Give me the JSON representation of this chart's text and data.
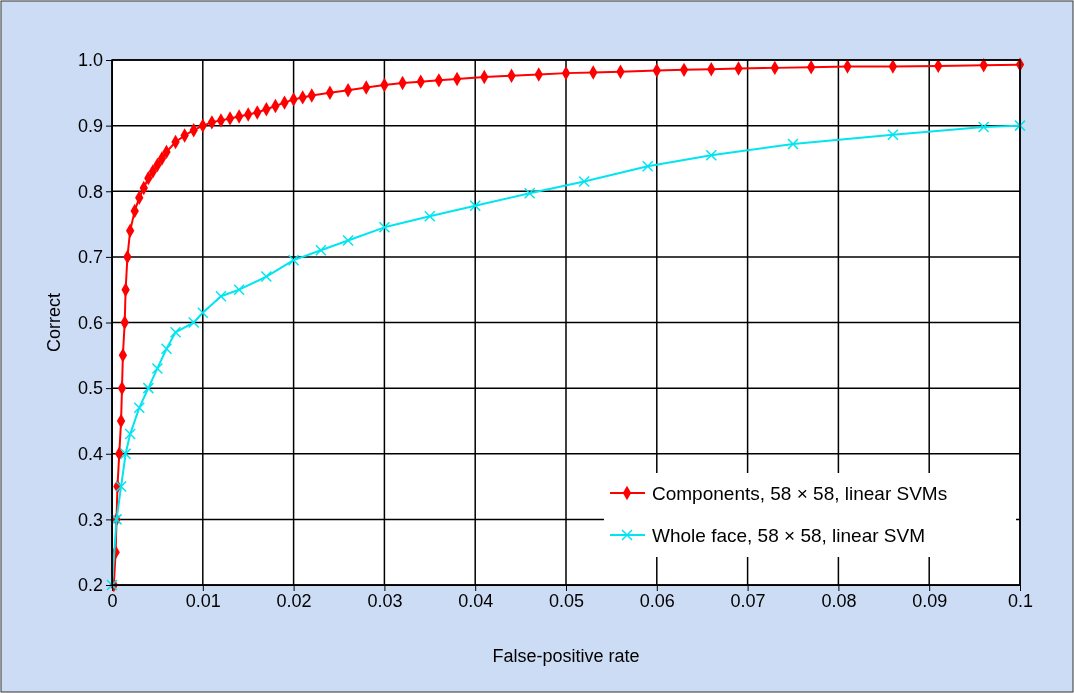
{
  "chart_data": {
    "type": "line",
    "xlabel": "False-positive rate",
    "ylabel": "Correct",
    "xlim": [
      0,
      0.1
    ],
    "ylim": [
      0.2,
      1.0
    ],
    "xticks": [
      0,
      0.01,
      0.02,
      0.03,
      0.04,
      0.05,
      0.06,
      0.07,
      0.08,
      0.09,
      0.1
    ],
    "yticks": [
      0.2,
      0.3,
      0.4,
      0.5,
      0.6,
      0.7,
      0.8,
      0.9,
      {
        "value": 1,
        "label": "1.0"
      }
    ],
    "grid": true,
    "legend": "bottom right",
    "line_style": "solid",
    "series": [
      {
        "name": "Components, 58 × 58, linear SVMs",
        "color": "#ff0000",
        "marker": "diamond",
        "x": [
          0.0002,
          0.0004,
          0.0005,
          0.0006,
          0.0008,
          0.001,
          0.0011,
          0.0012,
          0.0014,
          0.0015,
          0.0017,
          0.002,
          0.0025,
          0.003,
          0.0035,
          0.004,
          0.0045,
          0.005,
          0.0055,
          0.006,
          0.007,
          0.008,
          0.009,
          0.01,
          0.011,
          0.012,
          0.013,
          0.014,
          0.015,
          0.016,
          0.017,
          0.018,
          0.019,
          0.02,
          0.021,
          0.022,
          0.024,
          0.026,
          0.028,
          0.03,
          0.032,
          0.034,
          0.036,
          0.038,
          0.041,
          0.044,
          0.047,
          0.05,
          0.053,
          0.056,
          0.06,
          0.063,
          0.066,
          0.069,
          0.073,
          0.077,
          0.081,
          0.086,
          0.091,
          0.096,
          0.1
        ],
        "values": [
          0.2,
          0.25,
          0.3,
          0.35,
          0.4,
          0.45,
          0.5,
          0.55,
          0.6,
          0.65,
          0.7,
          0.74,
          0.77,
          0.79,
          0.805,
          0.82,
          0.83,
          0.84,
          0.85,
          0.86,
          0.875,
          0.885,
          0.893,
          0.9,
          0.905,
          0.908,
          0.911,
          0.914,
          0.917,
          0.92,
          0.925,
          0.93,
          0.935,
          0.94,
          0.943,
          0.946,
          0.95,
          0.954,
          0.958,
          0.962,
          0.965,
          0.967,
          0.969,
          0.971,
          0.974,
          0.976,
          0.978,
          0.98,
          0.981,
          0.982,
          0.984,
          0.985,
          0.986,
          0.987,
          0.988,
          0.989,
          0.99,
          0.99,
          0.991,
          0.992,
          0.993
        ]
      },
      {
        "name": "Whole face, 58 × 58, linear SVM",
        "color": "#00e5f0",
        "marker": "cross",
        "x": [
          0,
          0.0005,
          0.001,
          0.0015,
          0.002,
          0.003,
          0.004,
          0.005,
          0.006,
          0.007,
          0.009,
          0.01,
          0.012,
          0.014,
          0.017,
          0.02,
          0.023,
          0.026,
          0.03,
          0.035,
          0.04,
          0.046,
          0.052,
          0.059,
          0.066,
          0.075,
          0.086,
          0.096,
          0.1
        ],
        "values": [
          0.2,
          0.3,
          0.35,
          0.4,
          0.43,
          0.47,
          0.5,
          0.53,
          0.56,
          0.585,
          0.6,
          0.615,
          0.64,
          0.65,
          0.67,
          0.695,
          0.71,
          0.725,
          0.745,
          0.762,
          0.778,
          0.797,
          0.815,
          0.838,
          0.855,
          0.872,
          0.886,
          0.898,
          0.9
        ]
      }
    ]
  }
}
